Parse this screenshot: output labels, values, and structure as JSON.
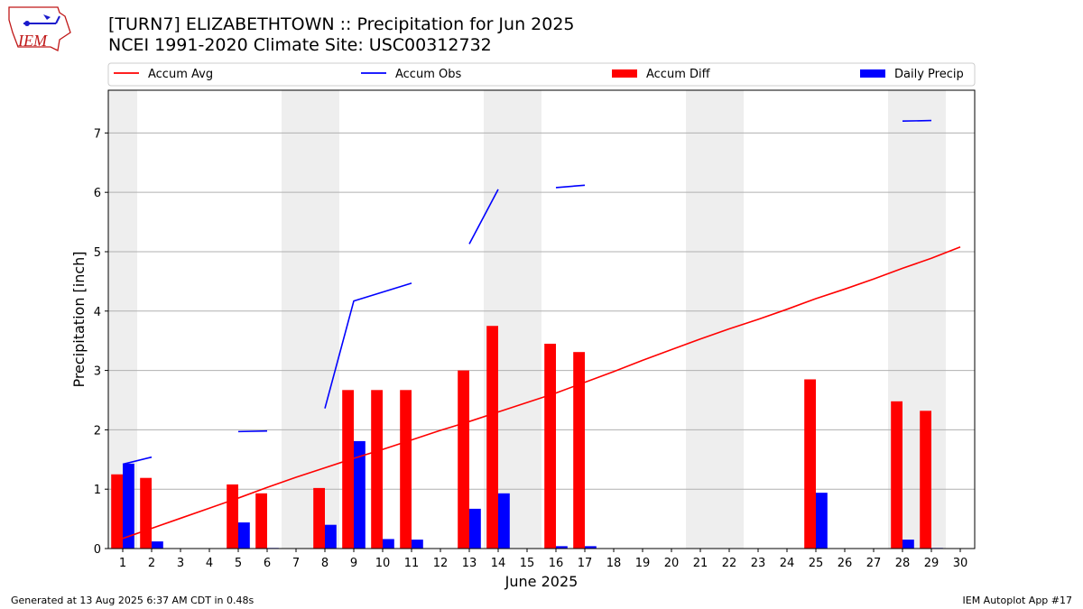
{
  "header": {
    "title_line1": "[TURN7] ELIZABETHTOWN :: Precipitation for Jun 2025",
    "title_line2": "NCEI 1991-2020 Climate Site: USC00312732",
    "logo_text": "IEM"
  },
  "footer": {
    "left": "Generated at 13 Aug 2025 6:37 AM CDT in 0.48s",
    "right": "IEM Autoplot App #17"
  },
  "colors": {
    "avg": "#ff0000",
    "obs": "#0000ff",
    "diff_bar": "#ff0000",
    "daily_bar": "#0000ff",
    "weekend_band": "#eeeeee",
    "grid": "#b0b0b0"
  },
  "chart_data": {
    "type": "bar",
    "xlabel": "June 2025",
    "ylabel": "Precipitation [inch]",
    "xlim": [
      0.5,
      30.5
    ],
    "ylim": [
      0,
      7.72
    ],
    "yticks": [
      0,
      1,
      2,
      3,
      4,
      5,
      6,
      7
    ],
    "grid": "y",
    "legend_placement": "top",
    "x": [
      1,
      2,
      3,
      4,
      5,
      6,
      7,
      8,
      9,
      10,
      11,
      12,
      13,
      14,
      15,
      16,
      17,
      18,
      19,
      20,
      21,
      22,
      23,
      24,
      25,
      26,
      27,
      28,
      29,
      30
    ],
    "shaded_days": [
      1,
      7,
      8,
      14,
      15,
      21,
      22,
      28,
      29
    ],
    "series": [
      {
        "name": "Accum Avg",
        "kind": "line",
        "values": [
          0.17,
          0.34,
          0.51,
          0.68,
          0.85,
          1.03,
          1.2,
          1.36,
          1.52,
          1.67,
          1.83,
          1.99,
          2.14,
          2.3,
          2.46,
          2.62,
          2.8,
          2.98,
          3.17,
          3.35,
          3.53,
          3.7,
          3.86,
          4.03,
          4.21,
          4.37,
          4.54,
          4.72,
          4.89,
          5.08
        ]
      },
      {
        "name": "Accum Obs",
        "kind": "line",
        "values": [
          1.42,
          1.54,
          null,
          null,
          1.97,
          1.98,
          null,
          2.36,
          4.17,
          4.32,
          4.47,
          null,
          5.13,
          6.05,
          null,
          6.08,
          6.12,
          null,
          null,
          null,
          null,
          null,
          null,
          null,
          null,
          null,
          null,
          7.2,
          7.21,
          null
        ]
      },
      {
        "name": "Accum Diff",
        "kind": "bar",
        "values": [
          1.25,
          1.19,
          null,
          null,
          1.08,
          0.93,
          null,
          1.02,
          2.67,
          2.67,
          2.67,
          null,
          3.0,
          3.75,
          null,
          3.45,
          3.31,
          null,
          null,
          null,
          null,
          null,
          null,
          null,
          2.85,
          null,
          null,
          2.48,
          2.32,
          null
        ]
      },
      {
        "name": "Daily Precip",
        "kind": "bar",
        "values": [
          1.43,
          0.12,
          0,
          0,
          0.44,
          0.01,
          0,
          0.4,
          1.81,
          0.16,
          0.15,
          0,
          0.67,
          0.93,
          0,
          0.04,
          0.04,
          0,
          0,
          0,
          0,
          0,
          0,
          0,
          0.94,
          0,
          0,
          0.15,
          0.01,
          0
        ]
      }
    ]
  }
}
